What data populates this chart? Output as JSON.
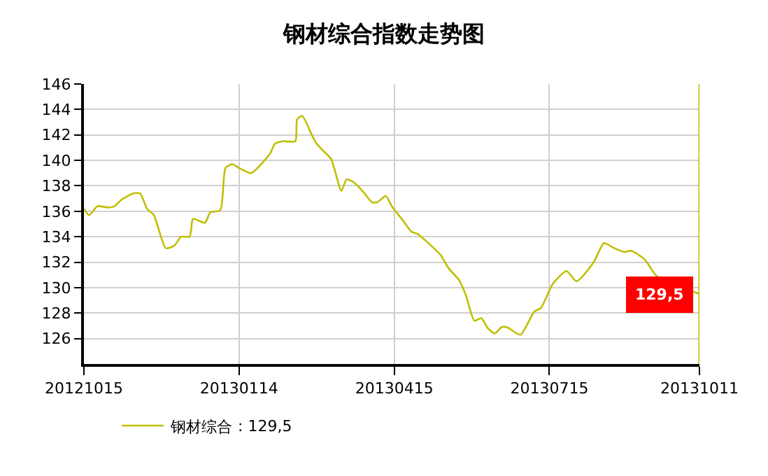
{
  "chart_data": {
    "type": "line",
    "title": "钢材综合指数走势图",
    "x": [
      "2012-10-15",
      "2012-10-18",
      "2012-10-23",
      "2012-10-29",
      "2012-11-02",
      "2012-11-06",
      "2012-11-13",
      "2012-11-17",
      "2012-11-21",
      "2012-11-25",
      "2012-12-02",
      "2012-12-07",
      "2012-12-11",
      "2012-12-16",
      "2012-12-18",
      "2012-12-25",
      "2012-12-28",
      "2013-01-03",
      "2013-01-06",
      "2013-01-10",
      "2013-01-14",
      "2013-01-21",
      "2013-02-01",
      "2013-02-04",
      "2013-02-09",
      "2013-02-16",
      "2013-02-17",
      "2013-02-20",
      "2013-02-26",
      "2013-02-28",
      "2013-03-04",
      "2013-03-09",
      "2013-03-15",
      "2013-03-18",
      "2013-03-22",
      "2013-03-28",
      "2013-04-02",
      "2013-04-05",
      "2013-04-10",
      "2013-04-14",
      "2013-04-20",
      "2013-04-25",
      "2013-04-29",
      "2013-05-05",
      "2013-05-12",
      "2013-05-17",
      "2013-05-23",
      "2013-05-27",
      "2013-06-01",
      "2013-06-05",
      "2013-06-09",
      "2013-06-13",
      "2013-06-17",
      "2013-06-20",
      "2013-06-28",
      "2013-07-06",
      "2013-07-10",
      "2013-07-17",
      "2013-07-25",
      "2013-07-31",
      "2013-08-10",
      "2013-08-16",
      "2013-08-22",
      "2013-08-28",
      "2013-09-01",
      "2013-09-09",
      "2013-09-16",
      "2013-10-11"
    ],
    "series": [
      {
        "name": "钢材综合",
        "color": "#bfbf00",
        "values": [
          136.2,
          135.7,
          136.4,
          136.3,
          136.4,
          136.9,
          137.4,
          137.4,
          136.2,
          135.7,
          133.1,
          133.3,
          134.0,
          134.0,
          135.4,
          135.1,
          135.9,
          136.1,
          139.4,
          139.7,
          139.4,
          139.0,
          140.5,
          141.3,
          141.5,
          141.5,
          143.2,
          143.5,
          141.9,
          141.4,
          140.8,
          140.1,
          137.6,
          138.5,
          138.3,
          137.5,
          136.7,
          136.7,
          137.2,
          136.3,
          135.3,
          134.4,
          134.2,
          133.5,
          132.6,
          131.5,
          130.6,
          129.4,
          127.4,
          127.6,
          126.8,
          126.4,
          126.9,
          126.9,
          126.3,
          128.1,
          128.4,
          130.3,
          131.3,
          130.5,
          132.0,
          133.5,
          133.1,
          132.8,
          132.9,
          132.2,
          130.9,
          129.5
        ]
      }
    ],
    "xlim": [
      "2012-10-15",
      "2013-10-11"
    ],
    "xticks": [
      {
        "value": "2012-10-15",
        "label": "20121015"
      },
      {
        "value": "2013-01-14",
        "label": "20130114"
      },
      {
        "value": "2013-04-15",
        "label": "20130415"
      },
      {
        "value": "2013-07-15",
        "label": "20130715"
      },
      {
        "value": "2013-10-11",
        "label": "20131011"
      }
    ],
    "ylim": [
      124,
      146
    ],
    "yticks": [
      126,
      128,
      130,
      132,
      134,
      136,
      138,
      140,
      142,
      144,
      146
    ],
    "grid": true,
    "legend": "bottom left",
    "marker": "none",
    "ref_lines": [
      {
        "axis": "x",
        "value": "2013-10-11",
        "color": "#bfbf00"
      }
    ],
    "annotations": [
      {
        "text": "129,5",
        "x": "2013-10-11",
        "y": 129.5
      },
      ": 129,5"
    ]
  }
}
